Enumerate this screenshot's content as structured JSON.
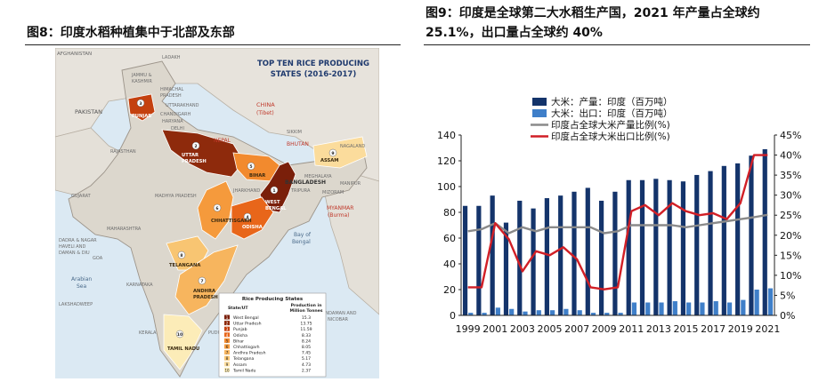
{
  "figure8": {
    "title": "图8：印度水稻种植集中于北部及东部",
    "map": {
      "title_lines": [
        "TOP TEN RICE PRODUCING",
        "STATES (2016-2017)"
      ],
      "countries": [
        {
          "name": "AFGHANISTAN"
        },
        {
          "name": "PAKISTAN"
        },
        {
          "name": "CHINA"
        },
        {
          "name": "(Tibet)"
        },
        {
          "name": "NEPAL"
        },
        {
          "name": "BHUTAN"
        },
        {
          "name": "BANGLADESH"
        },
        {
          "name": "MYANMAR"
        },
        {
          "name": "(Burma)"
        }
      ],
      "regions": [
        "LADAKH",
        "JAMMU &",
        "KASHMIR",
        "HIMACHAL",
        "PRADESH",
        "UTTARAKHAND",
        "HARYANA",
        "DELHI",
        "RAJASTHAN",
        "GUJARAT",
        "MADHYA PRADESH",
        "JHARKHAND",
        "MAHARASHTRA",
        "GOA",
        "KARNATAKA",
        "KERALA",
        "SIKKIM",
        "MEGHALAYA",
        "NAGALAND",
        "MANIPUR",
        "TRIPURA",
        "MIZORAM",
        "CHANDIGARH",
        "DADRA & NAGAR",
        "HAVELI AND",
        "DAMAN & DIU",
        "PUDUCHERRY",
        "LAKSHADWEEP",
        "ANDAMAN AND",
        "NICOBAR"
      ],
      "seas": [
        {
          "name": "Arabian"
        },
        {
          "name": "Sea"
        },
        {
          "name": "Bay of"
        },
        {
          "name": "Bengal"
        }
      ],
      "states": [
        {
          "rank": "1",
          "label_lines": [
            "WEST",
            "BENGAL"
          ],
          "color": "#7a1f0a"
        },
        {
          "rank": "2",
          "label_lines": [
            "UTTAR",
            "PRADESH"
          ],
          "color": "#8e2a0c"
        },
        {
          "rank": "3",
          "label_lines": [
            "PUNJAB"
          ],
          "color": "#c4410f"
        },
        {
          "rank": "4",
          "label_lines": [
            "ODISHA"
          ],
          "color": "#e8661a"
        },
        {
          "rank": "5",
          "label_lines": [
            "BIHAR"
          ],
          "color": "#f28a2e"
        },
        {
          "rank": "6",
          "label_lines": [
            "CHHATTISGARH"
          ],
          "color": "#f59a3c"
        },
        {
          "rank": "7",
          "label_lines": [
            "ANDHRA",
            "PRADESH"
          ],
          "color": "#f7b55e"
        },
        {
          "rank": "8",
          "label_lines": [
            "TELANGANA"
          ],
          "color": "#f8c572"
        },
        {
          "rank": "9",
          "label_lines": [
            "ASSAM"
          ],
          "color": "#fbdc9c"
        },
        {
          "rank": "10",
          "label_lines": [
            "TAMIL NADU"
          ],
          "color": "#fcecb8"
        }
      ],
      "legend": {
        "title": "Rice Producing States",
        "col_state": "State/UT",
        "col_production": [
          "Production in",
          "Million Tonnes"
        ],
        "rows": [
          {
            "rank": "1",
            "state": "West Bengal",
            "value": "15.3"
          },
          {
            "rank": "2",
            "state": "Uttar Pradesh",
            "value": "13.75"
          },
          {
            "rank": "3",
            "state": "Punjab",
            "value": "11.59"
          },
          {
            "rank": "4",
            "state": "Odisha",
            "value": "8.33"
          },
          {
            "rank": "5",
            "state": "Bihar",
            "value": "8.24"
          },
          {
            "rank": "6",
            "state": "Chhattisgarh",
            "value": "8.05"
          },
          {
            "rank": "7",
            "state": "Andhra Pradesh",
            "value": "7.45"
          },
          {
            "rank": "8",
            "state": "Telangana",
            "value": "5.17"
          },
          {
            "rank": "9",
            "state": "Assam",
            "value": "4.73"
          },
          {
            "rank": "10",
            "state": "Tamil Nadu",
            "value": "2.37"
          }
        ]
      }
    }
  },
  "figure9": {
    "title_lines": [
      "图9：印度是全球第二大水稻生产国，2021 年产量占全球约",
      "25.1%，出口量占全球约 40%"
    ]
  },
  "chart_data": {
    "type": "bar",
    "x": [
      1999,
      2000,
      2001,
      2002,
      2003,
      2004,
      2005,
      2006,
      2007,
      2008,
      2009,
      2010,
      2011,
      2012,
      2013,
      2014,
      2015,
      2016,
      2017,
      2018,
      2019,
      2020,
      2021
    ],
    "x_tick_labels": [
      "1999",
      "2001",
      "2003",
      "2005",
      "2007",
      "2009",
      "2011",
      "2013",
      "2015",
      "2017",
      "2019",
      "2021"
    ],
    "ylim": [
      0,
      140
    ],
    "y_ticks": [
      0,
      20,
      40,
      60,
      80,
      100,
      120,
      140
    ],
    "y2lim": [
      0,
      45
    ],
    "y2_ticks": [
      "0%",
      "5%",
      "10%",
      "15%",
      "20%",
      "25%",
      "30%",
      "35%",
      "40%",
      "45%"
    ],
    "legend": "top-left",
    "series": [
      {
        "name": "大米：产量：印度（百万吨）",
        "type": "bar",
        "axis": "left",
        "color": "#14346b",
        "values": [
          85,
          85,
          93,
          72,
          89,
          83,
          91,
          93,
          96,
          99,
          89,
          96,
          105,
          105,
          106,
          105,
          104,
          109,
          112,
          116,
          118,
          124,
          129
        ]
      },
      {
        "name": "大米：出口：印度（百万吨）",
        "type": "bar",
        "axis": "left",
        "color": "#3f7fc9",
        "values": [
          2,
          2,
          6,
          5,
          3,
          4,
          4,
          5,
          4,
          2,
          2,
          2,
          10,
          10,
          10,
          11,
          10,
          10,
          11,
          10,
          12,
          20,
          21
        ]
      },
      {
        "name": "印度占全球大米产量比例(%)",
        "type": "line",
        "axis": "right",
        "color": "#8a8a8a",
        "values": [
          21,
          21.5,
          23,
          20.5,
          22,
          21,
          22,
          22,
          22,
          22,
          20.5,
          21,
          22.5,
          22.5,
          22.5,
          22.5,
          22,
          22.5,
          23,
          23.5,
          24,
          24.5,
          25.1
        ]
      },
      {
        "name": "印度占全球大米出口比例(%)",
        "type": "line",
        "axis": "right",
        "color": "#d11f26",
        "values": [
          7,
          7,
          23,
          19,
          11,
          16,
          15,
          17,
          14,
          7,
          6.5,
          7,
          26,
          27.5,
          25,
          28,
          26,
          25,
          25.5,
          24,
          28,
          40,
          40
        ]
      }
    ]
  }
}
